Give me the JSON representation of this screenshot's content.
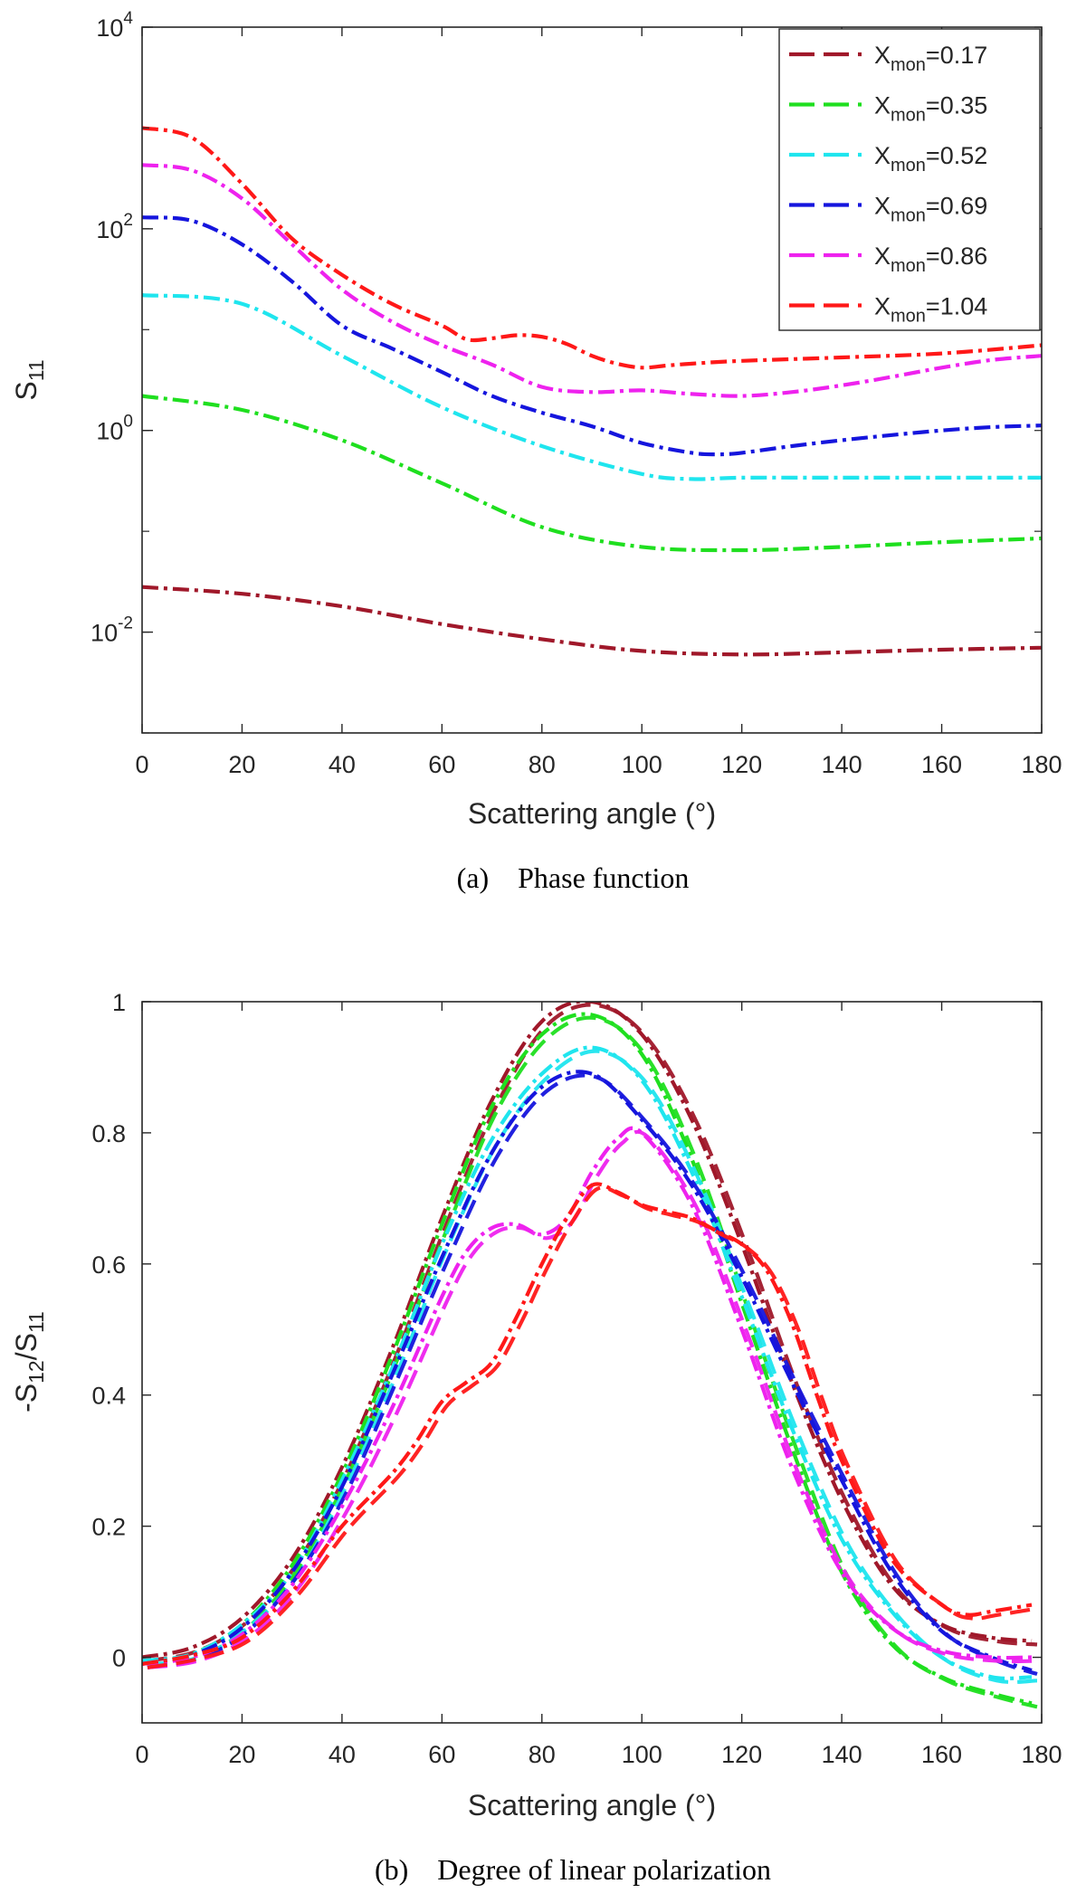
{
  "chart_data": [
    {
      "type": "line",
      "yscale": "log",
      "caption": "(a)    Phase function",
      "xlabel": "Scattering angle (°)",
      "ylabel": "S",
      "ylabel_sub": "11",
      "xlim": [
        0,
        180
      ],
      "ylim": [
        0.001,
        10000
      ],
      "xticks": [
        0,
        20,
        40,
        60,
        80,
        100,
        120,
        140,
        160,
        180
      ],
      "xtick_labels": [
        "0",
        "20",
        "40",
        "60",
        "80",
        "100",
        "120",
        "140",
        "160",
        "180"
      ],
      "yticks": [
        {
          "base": "10",
          "exp": "4",
          "value": 10000
        },
        {
          "base": "10",
          "exp": "2",
          "value": 100
        },
        {
          "base": "10",
          "exp": "0",
          "value": 1
        },
        {
          "base": "10",
          "exp": "-2",
          "value": 0.01
        }
      ],
      "legend_position": "top-right",
      "series": [
        {
          "name": "X_mon=0.17",
          "label_main": "X",
          "label_sub": "mon",
          "label_val": "=0.17",
          "color": "#a0182a",
          "x": [
            0,
            20,
            40,
            60,
            80,
            100,
            120,
            140,
            160,
            180
          ],
          "y": [
            0.028,
            0.024,
            0.018,
            0.012,
            0.0085,
            0.0065,
            0.006,
            0.0063,
            0.0067,
            0.007
          ]
        },
        {
          "name": "X_mon=0.35",
          "label_main": "X",
          "label_sub": "mon",
          "label_val": "=0.35",
          "color": "#1fdf1f",
          "x": [
            0,
            20,
            40,
            60,
            80,
            100,
            120,
            140,
            160,
            180
          ],
          "y": [
            2.2,
            1.6,
            0.8,
            0.3,
            0.11,
            0.07,
            0.065,
            0.07,
            0.078,
            0.085
          ]
        },
        {
          "name": "X_mon=0.52",
          "label_main": "X",
          "label_sub": "mon",
          "label_val": "=0.52",
          "color": "#1fe5ee",
          "x": [
            0,
            20,
            40,
            60,
            80,
            100,
            110,
            120,
            140,
            160,
            180
          ],
          "y": [
            22,
            18,
            5.5,
            1.7,
            0.7,
            0.37,
            0.33,
            0.34,
            0.34,
            0.34,
            0.34
          ]
        },
        {
          "name": "X_mon=0.69",
          "label_main": "X",
          "label_sub": "mon",
          "label_val": "=0.69",
          "color": "#1515dd",
          "x": [
            0,
            10,
            20,
            30,
            40,
            50,
            60,
            70,
            80,
            90,
            100,
            110,
            115,
            120,
            130,
            140,
            150,
            160,
            170,
            180
          ],
          "y": [
            130,
            120,
            70,
            30,
            11,
            6.5,
            3.8,
            2.2,
            1.5,
            1.1,
            0.75,
            0.6,
            0.58,
            0.6,
            0.7,
            0.8,
            0.9,
            1.0,
            1.08,
            1.12
          ]
        },
        {
          "name": "X_mon=0.86",
          "label_main": "X",
          "label_sub": "mon",
          "label_val": "=0.86",
          "color": "#ee22ee",
          "x": [
            0,
            10,
            20,
            30,
            40,
            50,
            60,
            70,
            80,
            90,
            100,
            110,
            120,
            130,
            140,
            150,
            160,
            170,
            180
          ],
          "y": [
            430,
            380,
            200,
            70,
            25,
            12,
            7,
            4.5,
            2.7,
            2.4,
            2.5,
            2.3,
            2.2,
            2.4,
            2.8,
            3.4,
            4.2,
            5.0,
            5.5
          ]
        },
        {
          "name": "X_mon=1.04",
          "label_main": "X",
          "label_sub": "mon",
          "label_val": "=1.04",
          "color": "#ff1818",
          "x": [
            0,
            10,
            20,
            30,
            40,
            50,
            60,
            65,
            70,
            75,
            80,
            85,
            90,
            95,
            100,
            105,
            110,
            120,
            140,
            160,
            180
          ],
          "y": [
            1000,
            800,
            280,
            80,
            35,
            18,
            11,
            8,
            8.2,
            8.8,
            8.5,
            7.2,
            5.5,
            4.6,
            4.2,
            4.4,
            4.6,
            4.9,
            5.3,
            5.8,
            7.0
          ]
        }
      ]
    },
    {
      "type": "line",
      "caption": "(b)    Degree of linear polarization",
      "xlabel": "Scattering angle (°)",
      "ylabel": "-S",
      "ylabel_sub1": "12",
      "ylabel_mid": "/S",
      "ylabel_sub2": "11",
      "xlim": [
        0,
        180
      ],
      "ylim": [
        -0.1,
        1.0
      ],
      "xticks": [
        0,
        20,
        40,
        60,
        80,
        100,
        120,
        140,
        160,
        180
      ],
      "xtick_labels": [
        "0",
        "20",
        "40",
        "60",
        "80",
        "100",
        "120",
        "140",
        "160",
        "180"
      ],
      "yticks": [
        0,
        0.2,
        0.4,
        0.6,
        0.8,
        1
      ],
      "ytick_labels": [
        "0",
        "0.2",
        "0.4",
        "0.6",
        "0.8",
        "1"
      ],
      "series": [
        {
          "name": "X_mon=0.17",
          "color": "#a0182a",
          "x": [
            0,
            10,
            20,
            30,
            40,
            50,
            60,
            70,
            80,
            90,
            100,
            110,
            120,
            130,
            140,
            150,
            160,
            170,
            178
          ],
          "y": [
            0.0,
            0.015,
            0.06,
            0.15,
            0.29,
            0.47,
            0.67,
            0.85,
            0.97,
            1.0,
            0.95,
            0.82,
            0.63,
            0.42,
            0.24,
            0.11,
            0.05,
            0.03,
            0.025
          ]
        },
        {
          "name": "X_mon=0.35",
          "color": "#1fdf1f",
          "x": [
            0,
            10,
            20,
            30,
            40,
            50,
            60,
            70,
            80,
            90,
            100,
            110,
            120,
            130,
            140,
            150,
            160,
            170,
            178
          ],
          "y": [
            -0.01,
            0.005,
            0.05,
            0.14,
            0.28,
            0.46,
            0.66,
            0.84,
            0.95,
            0.98,
            0.92,
            0.76,
            0.54,
            0.32,
            0.13,
            0.02,
            -0.03,
            -0.055,
            -0.07
          ]
        },
        {
          "name": "X_mon=0.52",
          "color": "#1fe5ee",
          "x": [
            0,
            10,
            20,
            30,
            40,
            50,
            60,
            70,
            80,
            90,
            100,
            110,
            120,
            130,
            140,
            150,
            160,
            170,
            178
          ],
          "y": [
            -0.005,
            0.005,
            0.05,
            0.13,
            0.27,
            0.44,
            0.63,
            0.79,
            0.89,
            0.93,
            0.88,
            0.74,
            0.55,
            0.35,
            0.18,
            0.07,
            0.0,
            -0.03,
            -0.03
          ]
        },
        {
          "name": "X_mon=0.69",
          "color": "#1515dd",
          "x": [
            0,
            10,
            20,
            30,
            40,
            50,
            60,
            70,
            80,
            90,
            100,
            110,
            120,
            130,
            140,
            150,
            160,
            170,
            178
          ],
          "y": [
            -0.01,
            0.003,
            0.045,
            0.13,
            0.26,
            0.43,
            0.61,
            0.77,
            0.87,
            0.89,
            0.82,
            0.72,
            0.58,
            0.42,
            0.27,
            0.13,
            0.04,
            0.0,
            -0.02
          ]
        },
        {
          "name": "X_mon=0.86",
          "color": "#ee22ee",
          "x": [
            0,
            10,
            20,
            30,
            40,
            50,
            60,
            65,
            70,
            75,
            80,
            85,
            90,
            95,
            100,
            110,
            120,
            130,
            140,
            150,
            160,
            170,
            178
          ],
          "y": [
            -0.01,
            0.0,
            0.035,
            0.11,
            0.23,
            0.38,
            0.55,
            0.62,
            0.655,
            0.66,
            0.645,
            0.67,
            0.74,
            0.79,
            0.8,
            0.69,
            0.5,
            0.29,
            0.13,
            0.045,
            0.01,
            0.0,
            0.0
          ]
        },
        {
          "name": "X_mon=1.04",
          "color": "#ff1818",
          "x": [
            0,
            10,
            20,
            30,
            40,
            50,
            55,
            60,
            65,
            70,
            75,
            80,
            85,
            90,
            95,
            100,
            105,
            110,
            115,
            120,
            125,
            130,
            135,
            140,
            150,
            160,
            165,
            170,
            178
          ],
          "y": [
            -0.01,
            0.003,
            0.03,
            0.1,
            0.2,
            0.28,
            0.33,
            0.39,
            0.42,
            0.45,
            0.52,
            0.6,
            0.67,
            0.72,
            0.71,
            0.69,
            0.68,
            0.67,
            0.65,
            0.63,
            0.59,
            0.51,
            0.4,
            0.3,
            0.15,
            0.08,
            0.065,
            0.07,
            0.08
          ]
        }
      ]
    }
  ]
}
